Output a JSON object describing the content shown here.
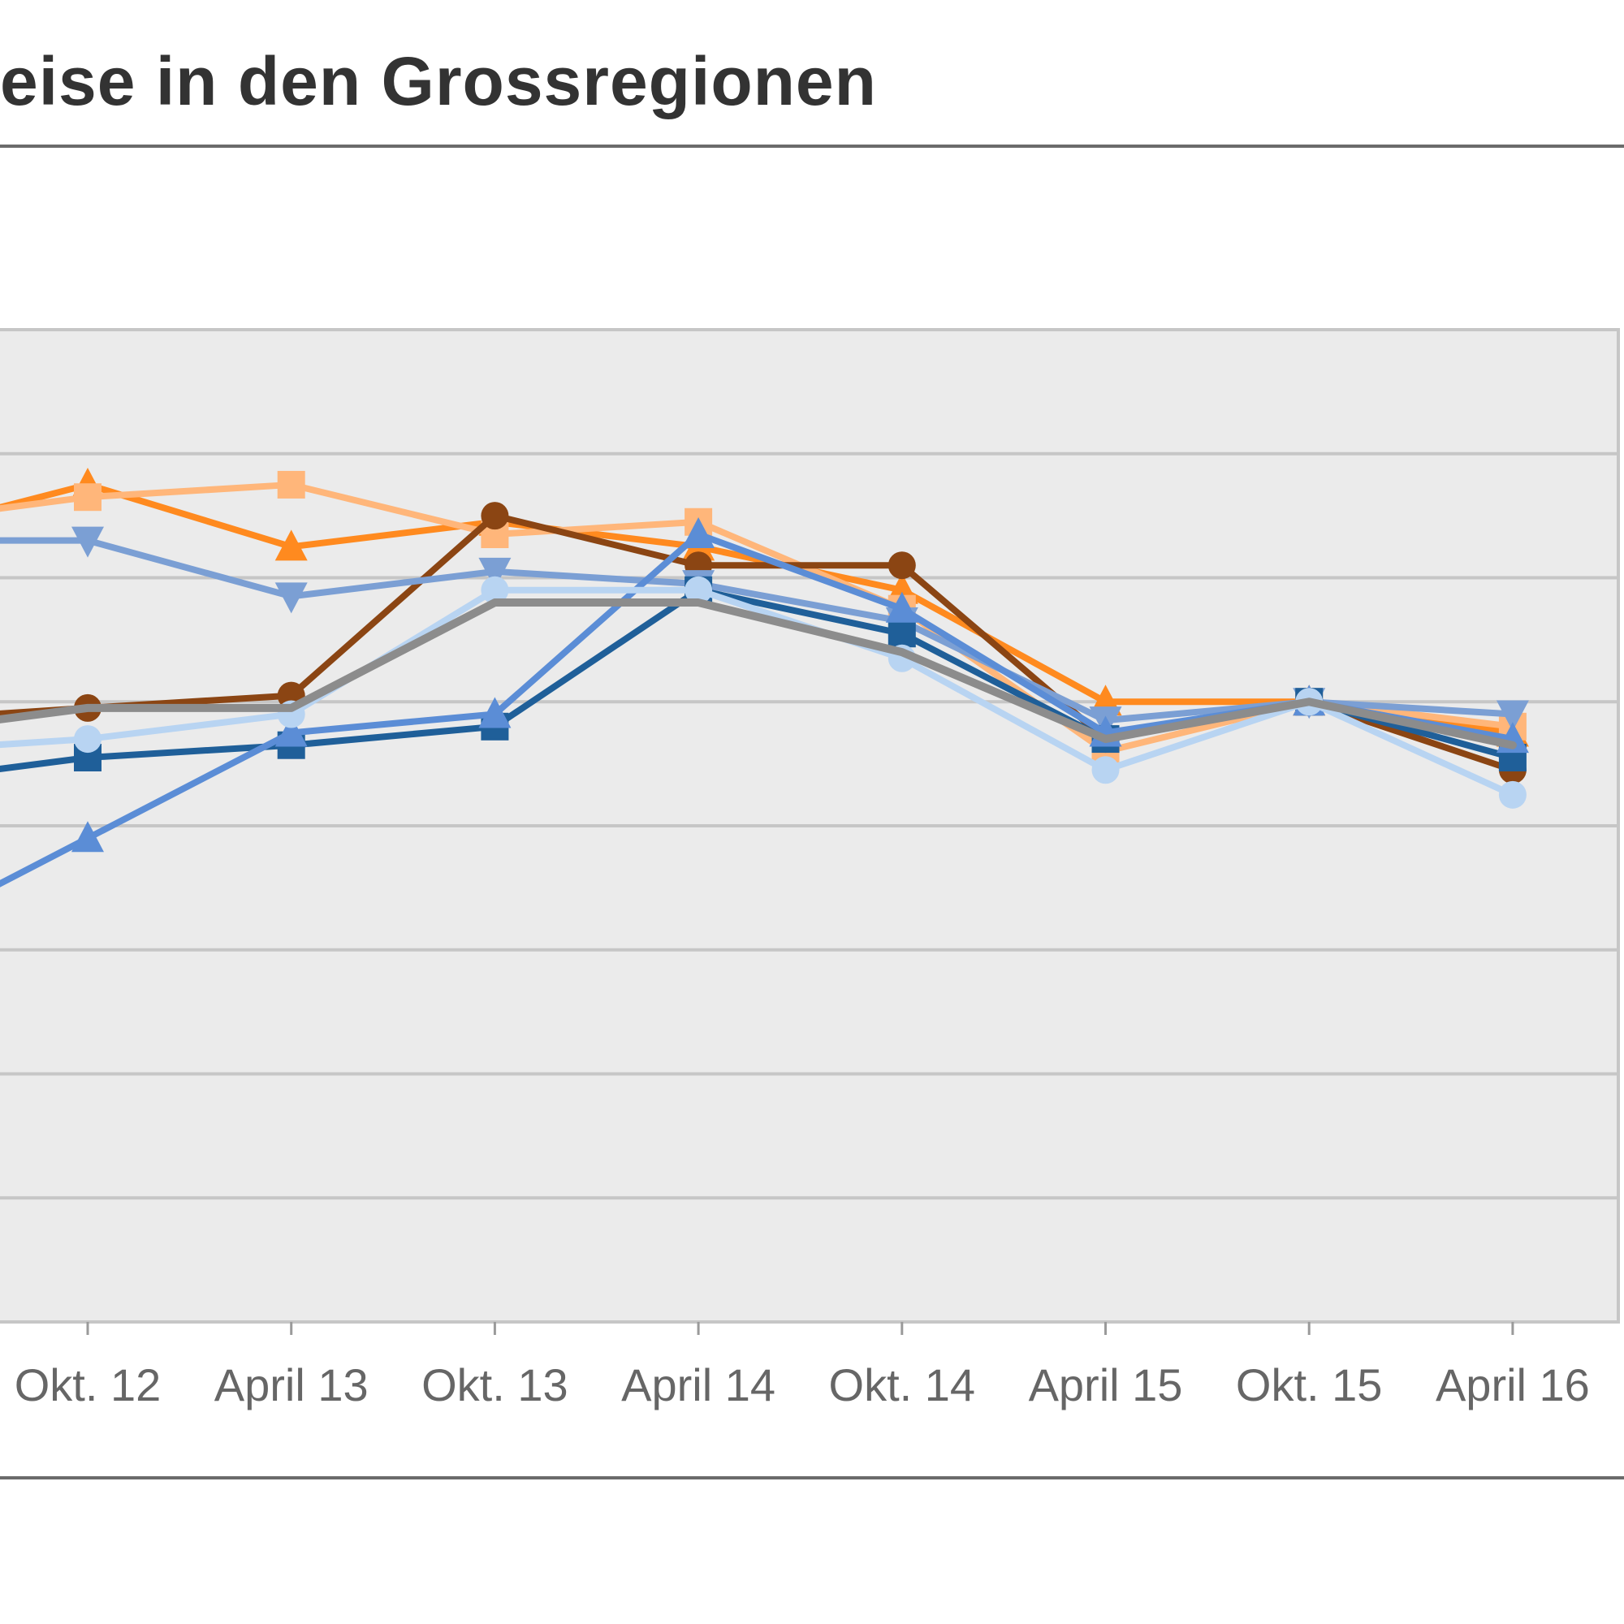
{
  "title": "eise in den Grossregionen",
  "chart_data": {
    "type": "line",
    "title": "eise in den Grossregionen",
    "xlabel": "",
    "ylabel": "",
    "ylim": [
      90,
      106
    ],
    "grid": true,
    "categories": [
      "Okt. 12",
      "April 13",
      "Okt. 13",
      "April 14",
      "Okt. 14",
      "April 15",
      "Okt. 15",
      "April 16"
    ],
    "series": [
      {
        "color": "#ff8a1f",
        "marker": "triangle-up",
        "values_from_left_edge": [
          103.1
        ],
        "values": [
          103.5,
          102.5,
          102.9,
          102.5,
          101.8,
          100.0,
          100.0,
          99.5
        ]
      },
      {
        "color": "#ffb67a",
        "marker": "square",
        "values_from_left_edge": [
          103.1
        ],
        "values": [
          103.3,
          103.5,
          102.7,
          102.9,
          101.5,
          99.2,
          100.0,
          99.6
        ]
      },
      {
        "color": "#8b4513",
        "marker": "circle",
        "values_from_left_edge": [
          99.8
        ],
        "values": [
          99.9,
          100.1,
          103.0,
          102.2,
          102.2,
          99.4,
          100.0,
          98.9
        ]
      },
      {
        "color": "#7b9fd4",
        "marker": "triangle-down",
        "values_from_left_edge": [
          102.6
        ],
        "values": [
          102.6,
          101.7,
          102.1,
          101.9,
          101.3,
          99.7,
          100.0,
          99.8
        ]
      },
      {
        "color": "#1f5f99",
        "marker": "square",
        "values_from_left_edge": [
          98.9
        ],
        "values": [
          99.1,
          99.3,
          99.6,
          101.8,
          101.1,
          99.4,
          100.0,
          99.1
        ]
      },
      {
        "color": "#5b8dd6",
        "marker": "triangle-up",
        "values_from_left_edge": [
          97.0
        ],
        "values": [
          97.8,
          99.5,
          99.8,
          102.7,
          101.5,
          99.5,
          100.0,
          99.4
        ]
      },
      {
        "color": "#b8d4f2",
        "marker": "circle",
        "values_from_left_edge": [
          99.3
        ],
        "values": [
          99.4,
          99.8,
          101.8,
          101.8,
          100.7,
          98.9,
          100.0,
          98.5
        ]
      },
      {
        "color": "#8c8c8c",
        "marker": "none",
        "values_from_left_edge": [
          99.7
        ],
        "values": [
          99.9,
          99.9,
          101.6,
          101.6,
          100.8,
          99.4,
          100.0,
          99.3
        ]
      }
    ]
  }
}
